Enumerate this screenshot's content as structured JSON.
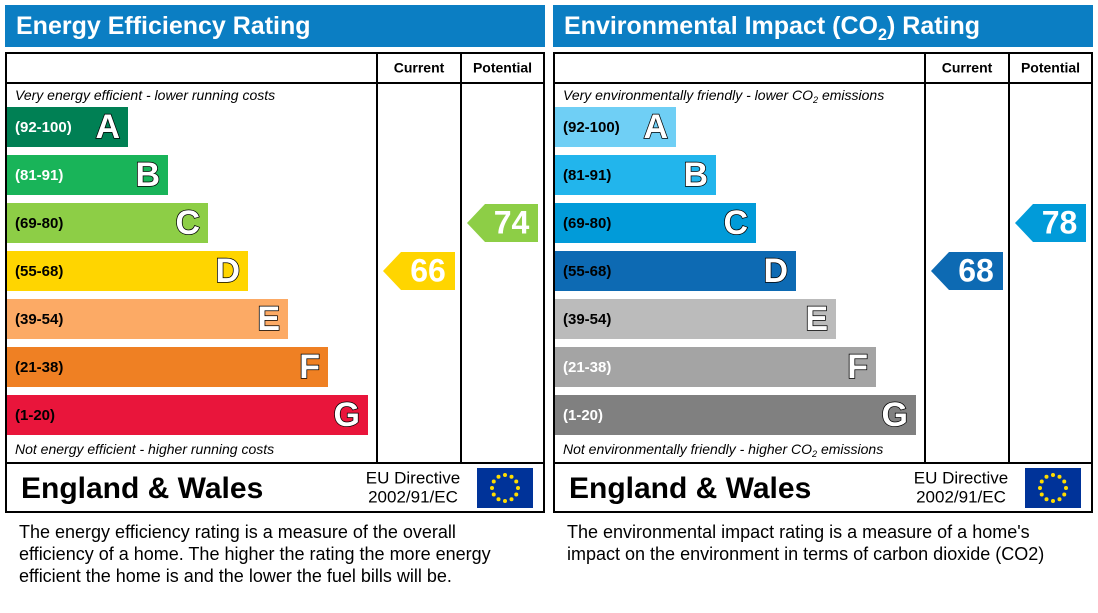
{
  "panels": [
    {
      "title": [
        {
          "text": "Energy Efficiency Rating"
        }
      ],
      "columns": [
        "Current",
        "Potential"
      ],
      "top_note": [
        {
          "text": "Very energy efficient - lower running costs"
        }
      ],
      "bottom_note": [
        {
          "text": "Not energy efficient - higher running costs"
        }
      ],
      "bands": [
        {
          "range": "(92-100)",
          "letter": "A",
          "color": "#008054",
          "text_color": "#ffffff"
        },
        {
          "range": "(81-91)",
          "letter": "B",
          "color": "#19b459",
          "text_color": "#ffffff"
        },
        {
          "range": "(69-80)",
          "letter": "C",
          "color": "#8dce46",
          "text_color": "#000000"
        },
        {
          "range": "(55-68)",
          "letter": "D",
          "color": "#ffd500",
          "text_color": "#000000"
        },
        {
          "range": "(39-54)",
          "letter": "E",
          "color": "#fcaa65",
          "text_color": "#000000"
        },
        {
          "range": "(21-38)",
          "letter": "F",
          "color": "#ef8023",
          "text_color": "#000000"
        },
        {
          "range": "(1-20)",
          "letter": "G",
          "color": "#e9153b",
          "text_color": "#000000"
        }
      ],
      "current": 66,
      "potential": 74,
      "region": "England & Wales",
      "directive": [
        "EU Directive",
        "2002/91/EC"
      ],
      "description": [
        "The energy efficiency rating is a measure of the overall",
        "efficiency of a home.  The higher the rating the more energy",
        "efficient the home is and the lower the fuel bills will be."
      ]
    },
    {
      "title": [
        {
          "text": "Environmental Impact (CO"
        },
        {
          "text": "2",
          "subscript": true
        },
        {
          "text": ") Rating"
        }
      ],
      "columns": [
        "Current",
        "Potential"
      ],
      "top_note": [
        {
          "text": "Very environmentally friendly - lower CO"
        },
        {
          "text": "2",
          "subscript": true
        },
        {
          "text": " emissions"
        }
      ],
      "bottom_note": [
        {
          "text": "Not environmentally friendly - higher CO"
        },
        {
          "text": "2",
          "subscript": true
        },
        {
          "text": " emissions"
        }
      ],
      "bands": [
        {
          "range": "(92-100)",
          "letter": "A",
          "color": "#6fcff5",
          "text_color": "#000000"
        },
        {
          "range": "(81-91)",
          "letter": "B",
          "color": "#22b5ec",
          "text_color": "#000000"
        },
        {
          "range": "(69-80)",
          "letter": "C",
          "color": "#019bd9",
          "text_color": "#000000"
        },
        {
          "range": "(55-68)",
          "letter": "D",
          "color": "#0d6ab3",
          "text_color": "#000000"
        },
        {
          "range": "(39-54)",
          "letter": "E",
          "color": "#bbbbbb",
          "text_color": "#000000"
        },
        {
          "range": "(21-38)",
          "letter": "F",
          "color": "#a4a4a4",
          "text_color": "#ffffff"
        },
        {
          "range": "(1-20)",
          "letter": "G",
          "color": "#808080",
          "text_color": "#ffffff"
        }
      ],
      "current": 68,
      "potential": 78,
      "region": "England & Wales",
      "directive": [
        "EU Directive",
        "2002/91/EC"
      ],
      "description": [
        "The environmental impact rating is a measure of a home's",
        "impact on the environment in terms of carbon dioxide (CO2)"
      ]
    }
  ]
}
